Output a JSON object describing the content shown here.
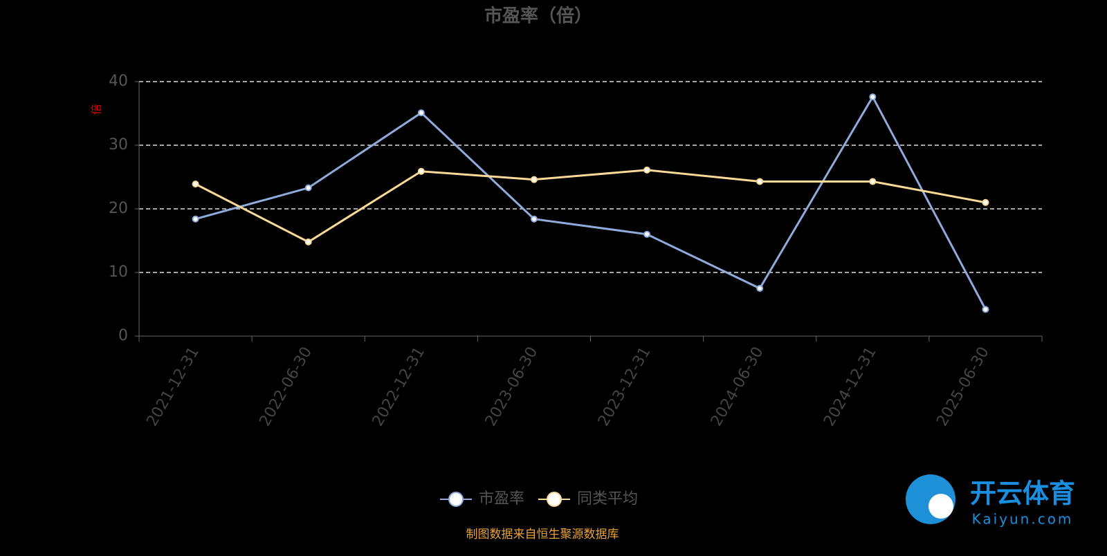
{
  "chart_data": {
    "type": "line",
    "title": "市盈率（倍）",
    "y_label": "倍",
    "categories": [
      "2021-12-31",
      "2022-06-30",
      "2022-12-31",
      "2023-06-30",
      "2023-12-31",
      "2024-06-30",
      "2024-12-31",
      "2025-06-30"
    ],
    "series": [
      {
        "name": "市盈率",
        "color": "#8fabdc",
        "values": [
          18.4,
          23.3,
          35.1,
          18.4,
          16.0,
          7.5,
          37.6,
          4.2
        ]
      },
      {
        "name": "同类平均",
        "color": "#fbd996",
        "values": [
          23.9,
          14.8,
          25.9,
          24.6,
          26.1,
          24.3,
          24.3,
          21.0
        ]
      }
    ],
    "ylim": [
      0,
      40
    ],
    "yticks": [
      0,
      10,
      20,
      30,
      40
    ],
    "grid": true,
    "legend": "bottom"
  },
  "source": "制图数据来自恒生聚源数据库",
  "watermark": {
    "name": "开云体育",
    "url": "Kaiyun.com"
  }
}
